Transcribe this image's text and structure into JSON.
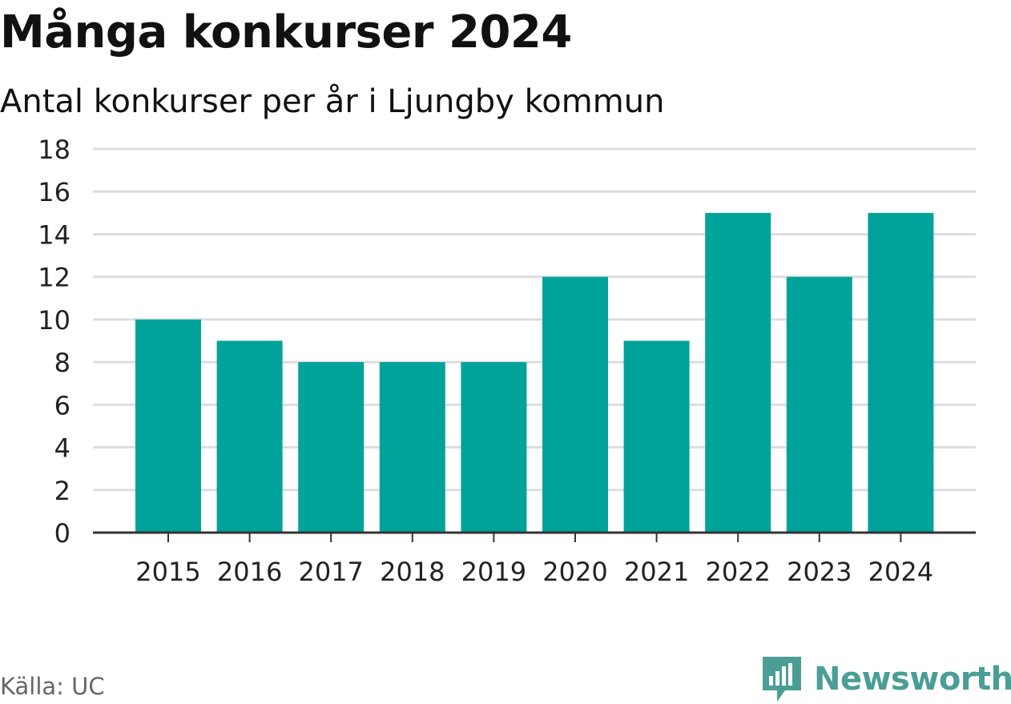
{
  "header": {
    "title": "Många konkurser 2024",
    "subtitle": "Antal konkurser per år i Ljungby kommun"
  },
  "footer": {
    "source": "Källa: UC",
    "brand": "Newsworthy"
  },
  "colors": {
    "bar": "#00a39a",
    "grid": "#dddddd",
    "axis": "#333333",
    "brand": "#4a9e95"
  },
  "chart_data": {
    "type": "bar",
    "categories": [
      "2015",
      "2016",
      "2017",
      "2018",
      "2019",
      "2020",
      "2021",
      "2022",
      "2023",
      "2024"
    ],
    "values": [
      10,
      9,
      8,
      8,
      8,
      12,
      9,
      15,
      12,
      15
    ],
    "title": "Många konkurser 2024",
    "subtitle": "Antal konkurser per år i Ljungby kommun",
    "xlabel": "",
    "ylabel": "",
    "ylim": [
      0,
      18
    ],
    "yticks": [
      0,
      2,
      4,
      6,
      8,
      10,
      12,
      14,
      16,
      18
    ],
    "grid": true,
    "legend": "none"
  }
}
